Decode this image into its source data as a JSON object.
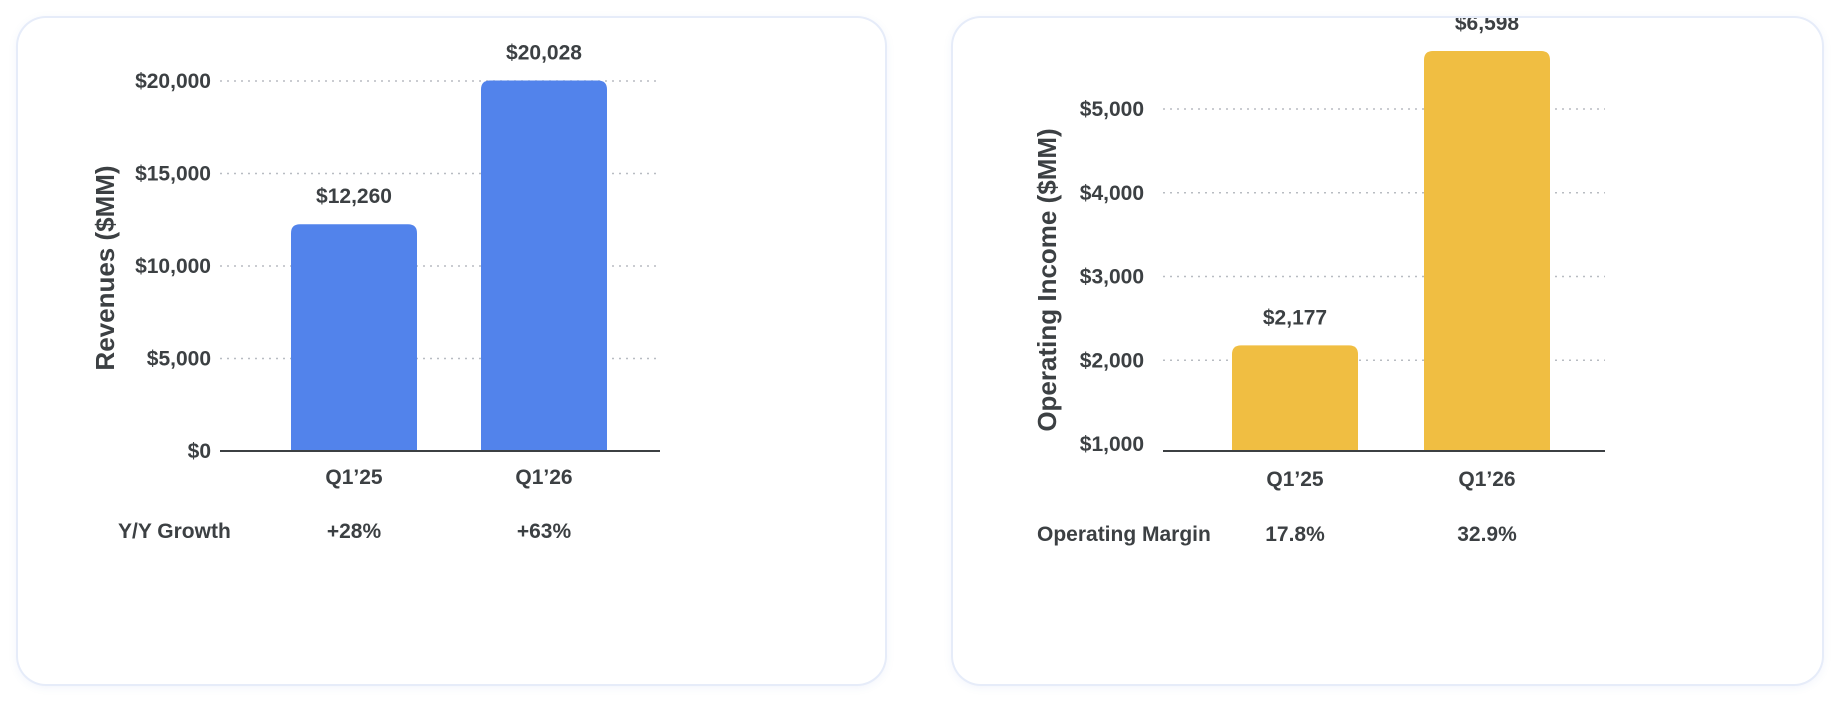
{
  "chart_data": [
    {
      "type": "bar",
      "categories": [
        "Q1’25",
        "Q1’26"
      ],
      "values": [
        12260,
        20028
      ],
      "value_labels": [
        "$12,260",
        "$20,028"
      ],
      "ylabel": "Revenues ($MM)",
      "ylim": [
        0,
        20000
      ],
      "ytick_values": [
        0,
        5000,
        10000,
        15000,
        20000
      ],
      "ytick_labels": [
        "$0",
        "$5,000",
        "$10,000",
        "$15,000",
        "$20,000"
      ],
      "grid": true,
      "bar_color": "#5283eb",
      "footer": {
        "label": "Y/Y Growth",
        "values": [
          "+28%",
          "+63%"
        ]
      }
    },
    {
      "type": "bar",
      "categories": [
        "Q1’25",
        "Q1’26"
      ],
      "values": [
        2177,
        6598
      ],
      "value_labels": [
        "$2,177",
        "$6,598"
      ],
      "ylabel": "Operating Income ($MM)",
      "ylim": [
        1000,
        5000
      ],
      "ytick_values": [
        1000,
        2000,
        3000,
        4000,
        5000
      ],
      "ytick_labels": [
        "$1,000",
        "$2,000",
        "$3,000",
        "$4,000",
        "$5,000"
      ],
      "grid": true,
      "axis_break": true,
      "bar_color": "#f0be42",
      "footer": {
        "label": "Operating Margin",
        "values": [
          "17.8%",
          "32.9%"
        ]
      }
    }
  ]
}
